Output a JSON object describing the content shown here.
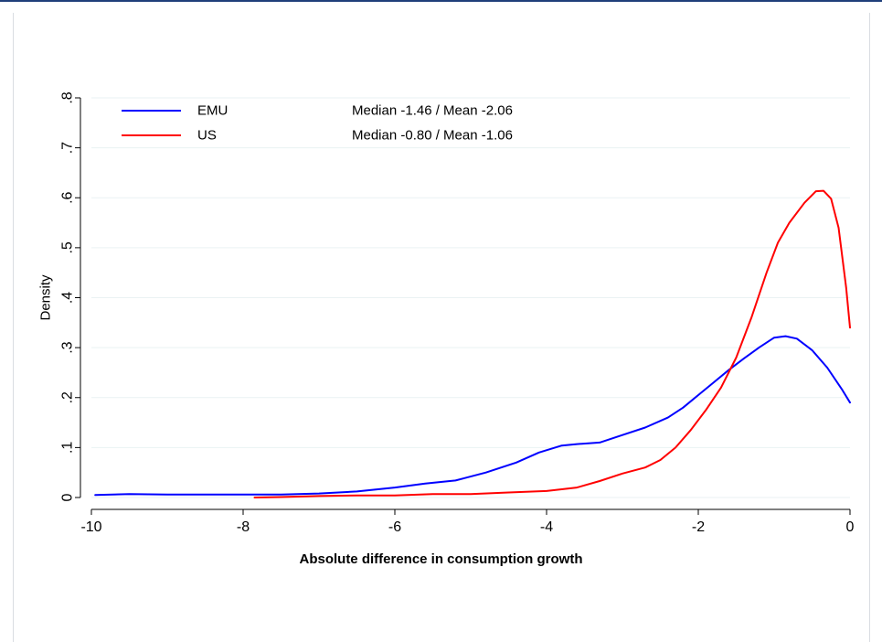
{
  "chart_data": {
    "type": "line",
    "title": "",
    "xlabel": "Absolute difference in consumption growth",
    "ylabel": "Density",
    "xlim": [
      -10,
      0
    ],
    "ylim": [
      0,
      0.8
    ],
    "xticks": [
      -10,
      -8,
      -6,
      -4,
      -2,
      0
    ],
    "xtick_labels": [
      "-10",
      "-8",
      "-6",
      "-4",
      "-2",
      "0"
    ],
    "yticks": [
      0,
      0.1,
      0.2,
      0.3,
      0.4,
      0.5,
      0.6,
      0.7,
      0.8
    ],
    "ytick_labels": [
      "0",
      ".1",
      ".2",
      ".3",
      ".4",
      ".5",
      ".6",
      ".7",
      ".8"
    ],
    "grid": true,
    "legend_position": "top-left",
    "series": [
      {
        "name": "EMU",
        "stats": "Median -1.46 / Mean -2.06",
        "color": "#0000ff",
        "x": [
          -9.95,
          -9.5,
          -9.0,
          -8.5,
          -8.0,
          -7.5,
          -7.0,
          -6.5,
          -6.0,
          -5.6,
          -5.2,
          -4.8,
          -4.4,
          -4.1,
          -3.8,
          -3.6,
          -3.3,
          -3.0,
          -2.7,
          -2.4,
          -2.2,
          -2.0,
          -1.8,
          -1.6,
          -1.4,
          -1.2,
          -1.0,
          -0.85,
          -0.7,
          -0.5,
          -0.3,
          -0.1,
          0.0
        ],
        "y": [
          0.005,
          0.007,
          0.006,
          0.006,
          0.006,
          0.006,
          0.008,
          0.012,
          0.02,
          0.028,
          0.034,
          0.05,
          0.07,
          0.09,
          0.104,
          0.107,
          0.11,
          0.125,
          0.14,
          0.16,
          0.18,
          0.205,
          0.23,
          0.255,
          0.278,
          0.3,
          0.32,
          0.323,
          0.318,
          0.295,
          0.26,
          0.215,
          0.19
        ]
      },
      {
        "name": "US",
        "stats": "Median -0.80 / Mean -1.06",
        "color": "#ff0000",
        "x": [
          -7.85,
          -7.5,
          -7.0,
          -6.5,
          -6.0,
          -5.5,
          -5.0,
          -4.5,
          -4.0,
          -3.6,
          -3.3,
          -3.0,
          -2.7,
          -2.5,
          -2.3,
          -2.1,
          -1.9,
          -1.7,
          -1.5,
          -1.3,
          -1.1,
          -0.95,
          -0.8,
          -0.6,
          -0.45,
          -0.35,
          -0.25,
          -0.15,
          -0.05,
          0.0
        ],
        "y": [
          0.0,
          0.001,
          0.003,
          0.004,
          0.004,
          0.007,
          0.007,
          0.01,
          0.013,
          0.02,
          0.033,
          0.048,
          0.06,
          0.075,
          0.1,
          0.135,
          0.175,
          0.22,
          0.28,
          0.36,
          0.45,
          0.51,
          0.55,
          0.59,
          0.613,
          0.614,
          0.598,
          0.54,
          0.42,
          0.34
        ]
      }
    ]
  }
}
